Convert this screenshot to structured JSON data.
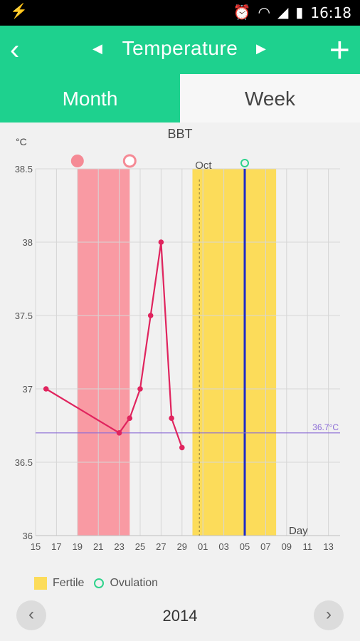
{
  "status": {
    "left_icon": "usb-icon",
    "time": "16:18",
    "icons": [
      "alarm-icon",
      "wifi-icon",
      "signal-icon",
      "battery-charging-icon"
    ]
  },
  "appbar": {
    "back_icon": "chevron-left-icon",
    "prev_icon": "triangle-left-icon",
    "title": "Temperature",
    "next_icon": "triangle-right-icon",
    "add_icon": "plus-icon"
  },
  "tabs": {
    "month": "Month",
    "week": "Week"
  },
  "colors": {
    "accent": "#1ed18e",
    "period": "#f99aa3",
    "fertile": "#fcdc5a",
    "line": "#e0245e",
    "ovulation": "#2fd38c",
    "today": "#1d2bc8",
    "coverline": "#8a6ad6"
  },
  "chart_data": {
    "type": "line",
    "title": "BBT",
    "ylabel": "°C",
    "xlabel": "Day",
    "ylim": [
      36,
      38.5
    ],
    "yticks": [
      "36",
      "36.5",
      "37",
      "37.5",
      "38",
      "38.5"
    ],
    "xtick_labels": [
      "15",
      "17",
      "19",
      "21",
      "23",
      "25",
      "27",
      "29",
      "01",
      "03",
      "05",
      "07",
      "09",
      "11",
      "13"
    ],
    "month_label": "Oct",
    "coverline": {
      "value": 36.7,
      "label": "36.7°C"
    },
    "series": [
      {
        "x": [
          "16",
          "23",
          "24",
          "25",
          "26",
          "27",
          "28",
          "29"
        ],
        "y": [
          37.0,
          36.7,
          36.8,
          37.0,
          37.5,
          38.0,
          36.8,
          36.6
        ]
      }
    ],
    "period_days": {
      "start": "19",
      "end": "23"
    },
    "fertile_days": {
      "start": "01",
      "end": "07"
    },
    "ovulation_day": "05",
    "today": "05",
    "period_start_marker": "filled",
    "period_end_marker": "open"
  },
  "legend": {
    "fertile": "Fertile",
    "ovulation": "Ovulation"
  },
  "footer": {
    "year": "2014",
    "prev_icon": "chevron-left-icon",
    "next_icon": "chevron-right-icon"
  }
}
